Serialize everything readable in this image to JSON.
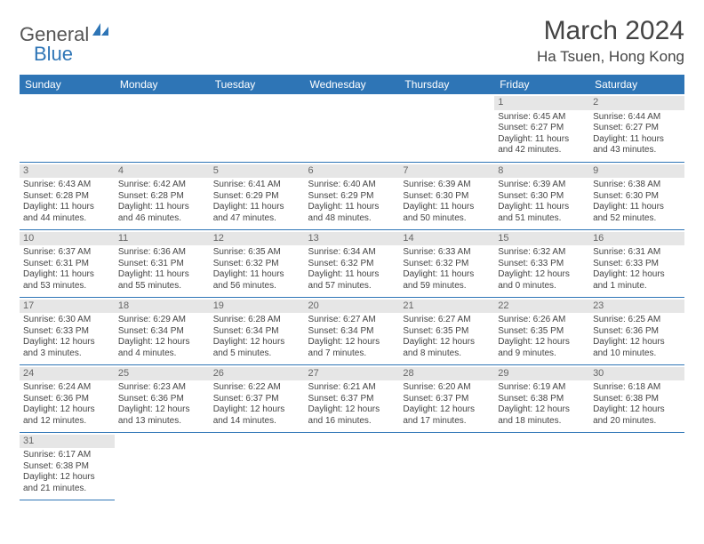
{
  "logo": {
    "text1": "General",
    "text2": "Blue"
  },
  "title": "March 2024",
  "location": "Ha Tsuen, Hong Kong",
  "colors": {
    "header_bg": "#2e75b6",
    "header_text": "#ffffff",
    "daynum_bg": "#e6e6e6",
    "rule": "#2e75b6",
    "body_text": "#444444"
  },
  "weekdays": [
    "Sunday",
    "Monday",
    "Tuesday",
    "Wednesday",
    "Thursday",
    "Friday",
    "Saturday"
  ],
  "weeks": [
    [
      null,
      null,
      null,
      null,
      null,
      {
        "n": "1",
        "sr": "Sunrise: 6:45 AM",
        "ss": "Sunset: 6:27 PM",
        "d1": "Daylight: 11 hours",
        "d2": "and 42 minutes."
      },
      {
        "n": "2",
        "sr": "Sunrise: 6:44 AM",
        "ss": "Sunset: 6:27 PM",
        "d1": "Daylight: 11 hours",
        "d2": "and 43 minutes."
      }
    ],
    [
      {
        "n": "3",
        "sr": "Sunrise: 6:43 AM",
        "ss": "Sunset: 6:28 PM",
        "d1": "Daylight: 11 hours",
        "d2": "and 44 minutes."
      },
      {
        "n": "4",
        "sr": "Sunrise: 6:42 AM",
        "ss": "Sunset: 6:28 PM",
        "d1": "Daylight: 11 hours",
        "d2": "and 46 minutes."
      },
      {
        "n": "5",
        "sr": "Sunrise: 6:41 AM",
        "ss": "Sunset: 6:29 PM",
        "d1": "Daylight: 11 hours",
        "d2": "and 47 minutes."
      },
      {
        "n": "6",
        "sr": "Sunrise: 6:40 AM",
        "ss": "Sunset: 6:29 PM",
        "d1": "Daylight: 11 hours",
        "d2": "and 48 minutes."
      },
      {
        "n": "7",
        "sr": "Sunrise: 6:39 AM",
        "ss": "Sunset: 6:30 PM",
        "d1": "Daylight: 11 hours",
        "d2": "and 50 minutes."
      },
      {
        "n": "8",
        "sr": "Sunrise: 6:39 AM",
        "ss": "Sunset: 6:30 PM",
        "d1": "Daylight: 11 hours",
        "d2": "and 51 minutes."
      },
      {
        "n": "9",
        "sr": "Sunrise: 6:38 AM",
        "ss": "Sunset: 6:30 PM",
        "d1": "Daylight: 11 hours",
        "d2": "and 52 minutes."
      }
    ],
    [
      {
        "n": "10",
        "sr": "Sunrise: 6:37 AM",
        "ss": "Sunset: 6:31 PM",
        "d1": "Daylight: 11 hours",
        "d2": "and 53 minutes."
      },
      {
        "n": "11",
        "sr": "Sunrise: 6:36 AM",
        "ss": "Sunset: 6:31 PM",
        "d1": "Daylight: 11 hours",
        "d2": "and 55 minutes."
      },
      {
        "n": "12",
        "sr": "Sunrise: 6:35 AM",
        "ss": "Sunset: 6:32 PM",
        "d1": "Daylight: 11 hours",
        "d2": "and 56 minutes."
      },
      {
        "n": "13",
        "sr": "Sunrise: 6:34 AM",
        "ss": "Sunset: 6:32 PM",
        "d1": "Daylight: 11 hours",
        "d2": "and 57 minutes."
      },
      {
        "n": "14",
        "sr": "Sunrise: 6:33 AM",
        "ss": "Sunset: 6:32 PM",
        "d1": "Daylight: 11 hours",
        "d2": "and 59 minutes."
      },
      {
        "n": "15",
        "sr": "Sunrise: 6:32 AM",
        "ss": "Sunset: 6:33 PM",
        "d1": "Daylight: 12 hours",
        "d2": "and 0 minutes."
      },
      {
        "n": "16",
        "sr": "Sunrise: 6:31 AM",
        "ss": "Sunset: 6:33 PM",
        "d1": "Daylight: 12 hours",
        "d2": "and 1 minute."
      }
    ],
    [
      {
        "n": "17",
        "sr": "Sunrise: 6:30 AM",
        "ss": "Sunset: 6:33 PM",
        "d1": "Daylight: 12 hours",
        "d2": "and 3 minutes."
      },
      {
        "n": "18",
        "sr": "Sunrise: 6:29 AM",
        "ss": "Sunset: 6:34 PM",
        "d1": "Daylight: 12 hours",
        "d2": "and 4 minutes."
      },
      {
        "n": "19",
        "sr": "Sunrise: 6:28 AM",
        "ss": "Sunset: 6:34 PM",
        "d1": "Daylight: 12 hours",
        "d2": "and 5 minutes."
      },
      {
        "n": "20",
        "sr": "Sunrise: 6:27 AM",
        "ss": "Sunset: 6:34 PM",
        "d1": "Daylight: 12 hours",
        "d2": "and 7 minutes."
      },
      {
        "n": "21",
        "sr": "Sunrise: 6:27 AM",
        "ss": "Sunset: 6:35 PM",
        "d1": "Daylight: 12 hours",
        "d2": "and 8 minutes."
      },
      {
        "n": "22",
        "sr": "Sunrise: 6:26 AM",
        "ss": "Sunset: 6:35 PM",
        "d1": "Daylight: 12 hours",
        "d2": "and 9 minutes."
      },
      {
        "n": "23",
        "sr": "Sunrise: 6:25 AM",
        "ss": "Sunset: 6:36 PM",
        "d1": "Daylight: 12 hours",
        "d2": "and 10 minutes."
      }
    ],
    [
      {
        "n": "24",
        "sr": "Sunrise: 6:24 AM",
        "ss": "Sunset: 6:36 PM",
        "d1": "Daylight: 12 hours",
        "d2": "and 12 minutes."
      },
      {
        "n": "25",
        "sr": "Sunrise: 6:23 AM",
        "ss": "Sunset: 6:36 PM",
        "d1": "Daylight: 12 hours",
        "d2": "and 13 minutes."
      },
      {
        "n": "26",
        "sr": "Sunrise: 6:22 AM",
        "ss": "Sunset: 6:37 PM",
        "d1": "Daylight: 12 hours",
        "d2": "and 14 minutes."
      },
      {
        "n": "27",
        "sr": "Sunrise: 6:21 AM",
        "ss": "Sunset: 6:37 PM",
        "d1": "Daylight: 12 hours",
        "d2": "and 16 minutes."
      },
      {
        "n": "28",
        "sr": "Sunrise: 6:20 AM",
        "ss": "Sunset: 6:37 PM",
        "d1": "Daylight: 12 hours",
        "d2": "and 17 minutes."
      },
      {
        "n": "29",
        "sr": "Sunrise: 6:19 AM",
        "ss": "Sunset: 6:38 PM",
        "d1": "Daylight: 12 hours",
        "d2": "and 18 minutes."
      },
      {
        "n": "30",
        "sr": "Sunrise: 6:18 AM",
        "ss": "Sunset: 6:38 PM",
        "d1": "Daylight: 12 hours",
        "d2": "and 20 minutes."
      }
    ],
    [
      {
        "n": "31",
        "sr": "Sunrise: 6:17 AM",
        "ss": "Sunset: 6:38 PM",
        "d1": "Daylight: 12 hours",
        "d2": "and 21 minutes."
      },
      null,
      null,
      null,
      null,
      null,
      null
    ]
  ]
}
